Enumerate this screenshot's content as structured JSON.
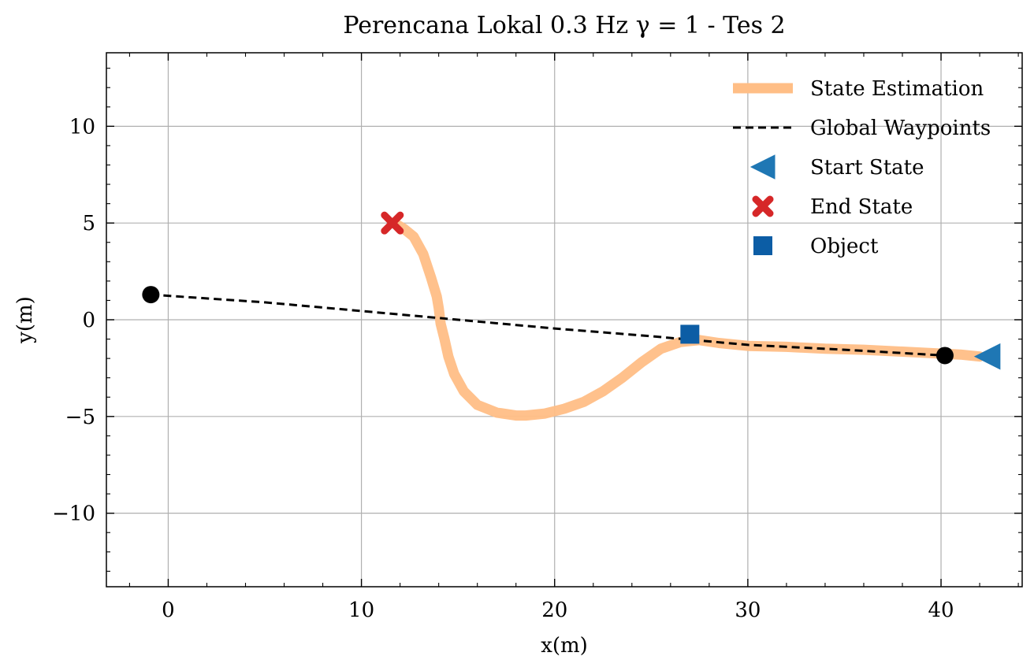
{
  "chart_data": {
    "type": "line",
    "title": "Perencana Lokal 0.3 Hz γ = 1 - Tes 2",
    "xlabel": "x(m)",
    "ylabel": "y(m)",
    "xlim": [
      -3.2,
      44.2
    ],
    "ylim": [
      -13.8,
      13.8
    ],
    "xticks": [
      0,
      10,
      20,
      30,
      40
    ],
    "yticks": [
      -10,
      -5,
      0,
      5,
      10
    ],
    "grid": true,
    "legend_position": "top-right",
    "series": [
      {
        "name": "State Estimation",
        "kind": "line",
        "color": "#ffbe86",
        "x": [
          42.0,
          41.0,
          40.0,
          38.0,
          36.0,
          34.0,
          32.0,
          30.0,
          28.5,
          27.5,
          26.5,
          25.5,
          24.5,
          23.5,
          22.5,
          21.5,
          20.5,
          19.5,
          18.5,
          18.0,
          17.0,
          16.0,
          15.3,
          14.8,
          14.5,
          14.3,
          14.1,
          14.0,
          13.9,
          13.6,
          13.2,
          12.7,
          12.2,
          11.7
        ],
        "y": [
          -1.9,
          -1.8,
          -1.75,
          -1.65,
          -1.55,
          -1.5,
          -1.4,
          -1.35,
          -1.2,
          -1.05,
          -1.15,
          -1.5,
          -2.2,
          -3.0,
          -3.7,
          -4.25,
          -4.6,
          -4.85,
          -4.95,
          -4.95,
          -4.8,
          -4.4,
          -3.7,
          -2.8,
          -1.9,
          -1.0,
          -0.2,
          0.6,
          1.2,
          2.2,
          3.4,
          4.3,
          4.7,
          5.0
        ]
      },
      {
        "name": "Global Waypoints",
        "kind": "dashed-line",
        "color": "#000000",
        "x": [
          -0.9,
          5.0,
          10.0,
          15.0,
          20.0,
          25.0,
          30.0,
          35.0,
          40.2
        ],
        "y": [
          1.3,
          0.9,
          0.45,
          0.0,
          -0.45,
          -0.85,
          -1.3,
          -1.55,
          -1.85
        ]
      },
      {
        "name": "Start State",
        "kind": "marker",
        "marker": "triangle-left",
        "color": "#1f77b4",
        "x": [
          42.4
        ],
        "y": [
          -1.9
        ]
      },
      {
        "name": "End State",
        "kind": "marker",
        "marker": "x-filled",
        "color": "#d62728",
        "x": [
          11.6
        ],
        "y": [
          5.0
        ]
      },
      {
        "name": "Object",
        "kind": "marker",
        "marker": "square",
        "color": "#0c5da5",
        "x": [
          27.0
        ],
        "y": [
          -0.75
        ]
      },
      {
        "kind": "endpoint-dots",
        "color": "#000000",
        "x": [
          -0.9,
          40.2
        ],
        "y": [
          1.3,
          -1.85
        ]
      }
    ]
  }
}
